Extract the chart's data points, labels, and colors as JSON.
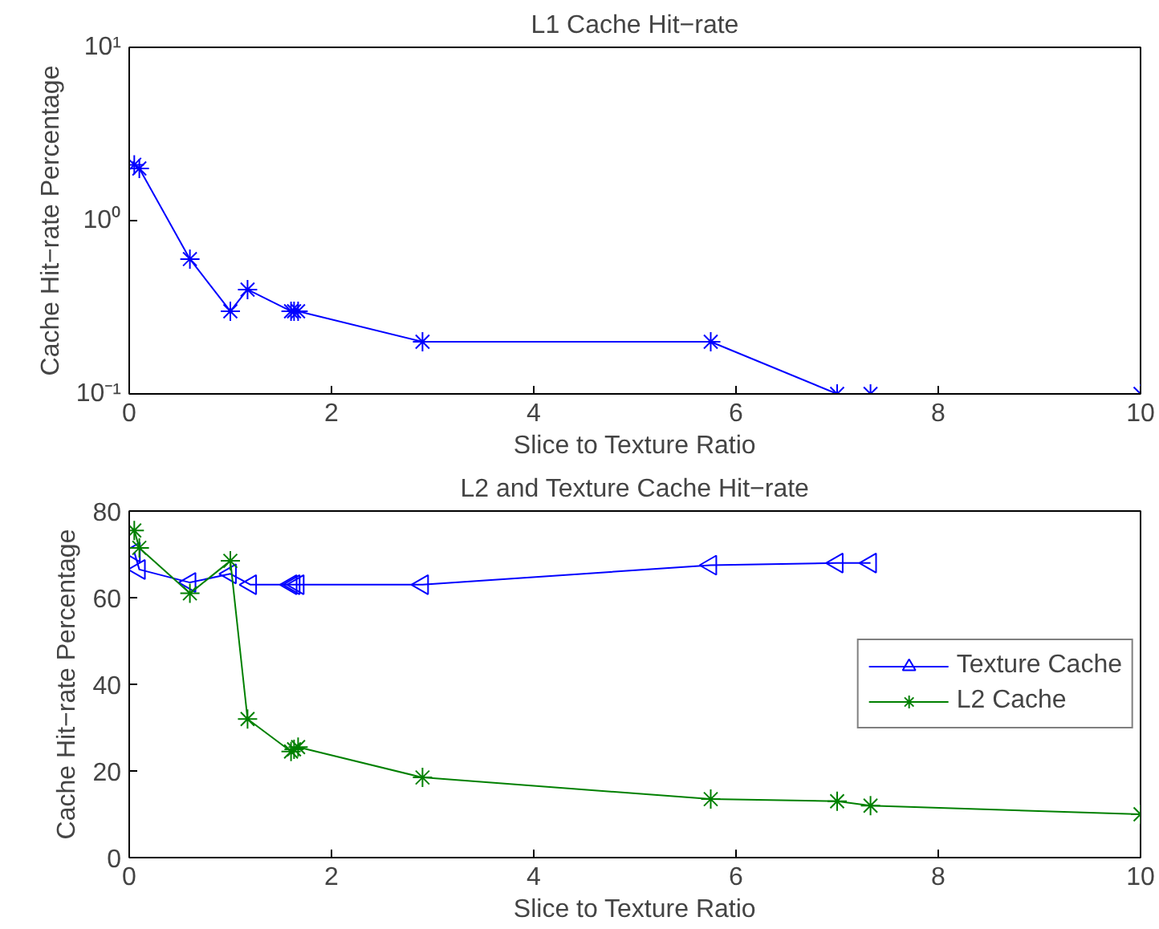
{
  "chart_data": [
    {
      "type": "line",
      "title": "L1 Cache Hit−rate",
      "xlabel": "Slice to Texture Ratio",
      "ylabel": "Cache Hit−rate Percentage",
      "log": "y",
      "marker": "cross",
      "grid": false,
      "legend": false,
      "xlim": [
        0,
        10
      ],
      "xticks": [
        0,
        2,
        4,
        6,
        8,
        10
      ],
      "ylim": [
        0.1,
        10
      ],
      "yticks": [
        {
          "value": 0.1,
          "label": "10⁻¹"
        },
        {
          "value": 1,
          "label": "10⁰"
        },
        {
          "value": 10,
          "label": "10¹"
        }
      ],
      "series": [
        {
          "color": "#0000ff",
          "x": [
            0.05,
            0.1,
            0.6,
            1.0,
            1.17,
            1.6,
            1.63,
            1.67,
            2.9,
            5.75,
            7.0,
            7.33,
            10
          ],
          "values": [
            2.1,
            2.0,
            0.6,
            0.3,
            0.4,
            0.3,
            0.3,
            0.3,
            0.2,
            0.2,
            0.1,
            0.1,
            0.1
          ]
        }
      ]
    },
    {
      "type": "line",
      "title": "L2 and Texture Cache Hit−rate",
      "xlabel": "Slice to Texture Ratio",
      "ylabel": "Cache Hit−rate Percentage",
      "grid": false,
      "legend": "right",
      "xlim": [
        0,
        10
      ],
      "xticks": [
        0,
        2,
        4,
        6,
        8,
        10
      ],
      "ylim": [
        0,
        80
      ],
      "yticks": [
        0,
        20,
        40,
        60,
        80
      ],
      "series": [
        {
          "name": "Texture Cache",
          "color": "#0000ff",
          "marker": "triangle",
          "x": [
            0.05,
            0.1,
            0.6,
            1.0,
            1.2,
            1.6,
            1.63,
            1.67,
            2.9,
            5.75,
            7.0,
            7.33
          ],
          "values": [
            70.5,
            66.5,
            63.5,
            65.5,
            63,
            63,
            63,
            63,
            63,
            67.5,
            68,
            68
          ]
        },
        {
          "name": "L2 Cache",
          "color": "#008000",
          "marker": "cross",
          "x": [
            0.05,
            0.1,
            0.6,
            1.0,
            1.17,
            1.6,
            1.63,
            1.67,
            2.9,
            5.75,
            7.0,
            7.33,
            10
          ],
          "values": [
            75.5,
            71.5,
            61,
            68.5,
            32,
            24.5,
            25,
            25.5,
            18.5,
            13.5,
            13,
            12,
            10
          ]
        }
      ]
    }
  ]
}
